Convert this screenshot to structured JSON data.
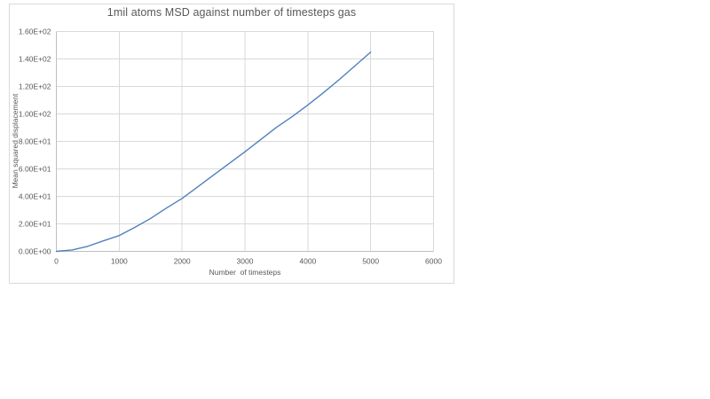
{
  "chart_data": {
    "type": "line",
    "title": "1mil atoms MSD against number of timesteps gas",
    "xlabel": "Number  of timesteps",
    "ylabel": "Mean squared displacement",
    "xlim": [
      0,
      6000
    ],
    "ylim": [
      0,
      160
    ],
    "grid": true,
    "legend": false,
    "x_tick_values": [
      0,
      1000,
      2000,
      3000,
      4000,
      5000,
      6000
    ],
    "x_tick_labels": [
      "0",
      "1000",
      "2000",
      "3000",
      "4000",
      "5000",
      "6000"
    ],
    "y_tick_values": [
      0,
      20,
      40,
      60,
      80,
      100,
      120,
      140,
      160
    ],
    "y_tick_labels": [
      "0.00E+00",
      "2.00E+01",
      "4.00E+01",
      "6.00E+01",
      "8.00E+01",
      "1.00E+02",
      "1.20E+02",
      "1.40E+02",
      "1.60E+02"
    ],
    "x": [
      0,
      250,
      500,
      750,
      1000,
      1250,
      1500,
      1750,
      2000,
      2250,
      2500,
      2750,
      3000,
      3250,
      3500,
      3750,
      4000,
      4250,
      4500,
      4750,
      5000
    ],
    "series": [
      {
        "values": [
          0,
          1.0,
          3.7,
          7.7,
          11.5,
          17.5,
          24.0,
          31.5,
          38.5,
          47.0,
          55.5,
          64.0,
          72.5,
          81.3,
          90.2,
          98.0,
          106.5,
          115.5,
          125.0,
          135.0,
          145.0
        ]
      }
    ]
  },
  "colors": {
    "line": "#4f81bd",
    "gridline": "#d9d9d9",
    "axis": "#bfbfbf",
    "text": "#595959",
    "frame_border": "#d9d9d9",
    "background": "#ffffff"
  }
}
